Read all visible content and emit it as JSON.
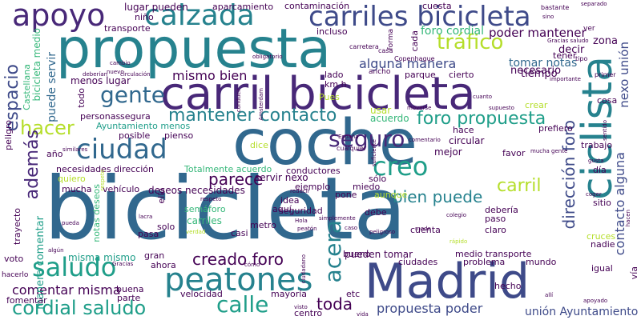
{
  "colors": {
    "background": "#ffffff",
    "palette": [
      "#440154",
      "#482878",
      "#3e4a89",
      "#31688e",
      "#26828e",
      "#1f9e89",
      "#35b779",
      "#6ece58",
      "#b5de2b",
      "#fde725"
    ]
  },
  "words": [
    {
      "text": "bicicleta",
      "color": "#31688e"
    },
    {
      "text": "coche",
      "color": "#31688e"
    },
    {
      "text": "propuesta",
      "color": "#26828e"
    },
    {
      "text": "carril bicicleta",
      "color": "#482878"
    },
    {
      "text": "Madrid",
      "color": "#3e4a89"
    },
    {
      "text": "ciclista",
      "color": "#26828e"
    },
    {
      "text": "calzada",
      "color": "#26828e"
    },
    {
      "text": "carriles bicicleta",
      "color": "#3e4a89"
    },
    {
      "text": "apoyo",
      "color": "#482878"
    },
    {
      "text": "peatones",
      "color": "#26828e"
    },
    {
      "text": "ciudad",
      "color": "#31688e"
    },
    {
      "text": "saludo",
      "color": "#1f9e89"
    },
    {
      "text": "calle",
      "color": "#1f9e89"
    },
    {
      "text": "cordial saludo",
      "color": "#1f9e89"
    },
    {
      "text": "gente",
      "color": "#31688e"
    },
    {
      "text": "mantener contacto",
      "color": "#26828e"
    },
    {
      "text": "seguro",
      "color": "#482878"
    },
    {
      "text": "creo",
      "color": "#1f9e89"
    },
    {
      "text": "tráfico",
      "color": "#b5de2b"
    },
    {
      "text": "hacer",
      "color": "#b5de2b"
    },
    {
      "text": "foro propuesta",
      "color": "#1f9e89"
    },
    {
      "text": "acera",
      "color": "#26828e"
    },
    {
      "text": "además",
      "color": "#482878"
    },
    {
      "text": "espacio",
      "color": "#3e4a89"
    },
    {
      "text": "dirección foro",
      "color": "#3e4a89"
    },
    {
      "text": "parece",
      "color": "#440154"
    },
    {
      "text": "bien puede",
      "color": "#26828e"
    },
    {
      "text": "creado foro",
      "color": "#440154"
    },
    {
      "text": "carril",
      "color": "#b5de2b"
    },
    {
      "text": "toda",
      "color": "#440154"
    },
    {
      "text": "propuesta poder",
      "color": "#3e4a89"
    },
    {
      "text": "poder mantener",
      "color": "#440154"
    },
    {
      "text": "alguna manera",
      "color": "#3e4a89"
    },
    {
      "text": "mismo bien",
      "color": "#440154"
    },
    {
      "text": "contacto alguna",
      "color": "#3e4a89"
    },
    {
      "text": "nexo unión",
      "color": "#3e4a89"
    },
    {
      "text": "unión Ayuntamiento",
      "color": "#3e4a89"
    },
    {
      "text": "comentar misma",
      "color": "#440154"
    },
    {
      "text": "foro cordial",
      "color": "#35b779"
    },
    {
      "text": "tomar notas",
      "color": "#31688e"
    },
    {
      "text": "necesario",
      "color": "#440154"
    },
    {
      "text": "tiempo",
      "color": "#440154"
    },
    {
      "text": "decir",
      "color": "#440154"
    },
    {
      "text": "zona",
      "color": "#440154"
    },
    {
      "text": "lugar pueden",
      "color": "#440154"
    },
    {
      "text": "aparcamiento",
      "color": "#440154"
    },
    {
      "text": "contaminación",
      "color": "#440154"
    },
    {
      "text": "cuesta",
      "color": "#440154"
    },
    {
      "text": "transporte",
      "color": "#440154"
    },
    {
      "text": "incluso",
      "color": "#440154"
    },
    {
      "text": "puede servir",
      "color": "#31688e"
    },
    {
      "text": "menos lugar",
      "color": "#440154"
    },
    {
      "text": "bicicleta medio",
      "color": "#35b779"
    },
    {
      "text": "Castellana",
      "color": "#35b779"
    },
    {
      "text": "lado",
      "color": "#440154"
    },
    {
      "text": "km h",
      "color": "#440154"
    },
    {
      "text": "parque",
      "color": "#440154"
    },
    {
      "text": "cierto",
      "color": "#440154"
    },
    {
      "text": "Ayuntamiento menos",
      "color": "#1f9e89"
    },
    {
      "text": "personas",
      "color": "#440154"
    },
    {
      "text": "segura",
      "color": "#440154"
    },
    {
      "text": "posible",
      "color": "#440154"
    },
    {
      "text": "pienso",
      "color": "#440154"
    },
    {
      "text": "necesidades dirección",
      "color": "#440154"
    },
    {
      "text": "Totalmente acuerdo",
      "color": "#35b779"
    },
    {
      "text": "conductores",
      "color": "#440154"
    },
    {
      "text": "servir nexo",
      "color": "#440154"
    },
    {
      "text": "deseos necesidades",
      "color": "#440154"
    },
    {
      "text": "idea",
      "color": "#440154"
    },
    {
      "text": "aquí",
      "color": "#440154"
    },
    {
      "text": "ejemplo",
      "color": "#440154"
    },
    {
      "text": "miedo",
      "color": "#440154"
    },
    {
      "text": "sólo",
      "color": "#440154"
    },
    {
      "text": "pone",
      "color": "#440154"
    },
    {
      "text": "aunque",
      "color": "#b5de2b"
    },
    {
      "text": "semáforo",
      "color": "#35b779"
    },
    {
      "text": "seguridad",
      "color": "#440154"
    },
    {
      "text": "debe",
      "color": "#440154"
    },
    {
      "text": "carriles",
      "color": "#35b779"
    },
    {
      "text": "metro",
      "color": "#440154"
    },
    {
      "text": "cuenta",
      "color": "#440154"
    },
    {
      "text": "claro",
      "color": "#440154"
    },
    {
      "text": "debería",
      "color": "#440154"
    },
    {
      "text": "paso",
      "color": "#440154"
    },
    {
      "text": "misma mismo",
      "color": "#1f9e89"
    },
    {
      "text": "pueden tomar",
      "color": "#440154"
    },
    {
      "text": "medio transporte",
      "color": "#440154"
    },
    {
      "text": "ciudades",
      "color": "#440154"
    },
    {
      "text": "problema",
      "color": "#440154"
    },
    {
      "text": "mundo",
      "color": "#440154"
    },
    {
      "text": "hecho",
      "color": "#440154"
    },
    {
      "text": "velocidad",
      "color": "#440154"
    },
    {
      "text": "mayoría",
      "color": "#440154"
    },
    {
      "text": "buena",
      "color": "#440154"
    },
    {
      "text": "parte",
      "color": "#440154"
    },
    {
      "text": "centro",
      "color": "#440154"
    },
    {
      "text": "manera comentar",
      "color": "#1f9e89"
    },
    {
      "text": "notas deseos",
      "color": "#35b779"
    },
    {
      "text": "quiero",
      "color": "#b5de2b"
    },
    {
      "text": "mucha",
      "color": "#440154"
    },
    {
      "text": "vehículo",
      "color": "#440154"
    },
    {
      "text": "pasa",
      "color": "#440154"
    },
    {
      "text": "casi",
      "color": "#440154"
    },
    {
      "text": "gran",
      "color": "#440154"
    },
    {
      "text": "ahora",
      "color": "#440154"
    },
    {
      "text": "solo",
      "color": "#440154"
    },
    {
      "text": "voto",
      "color": "#440154"
    },
    {
      "text": "fomentar",
      "color": "#440154"
    },
    {
      "text": "hacerlo",
      "color": "#440154"
    },
    {
      "text": "usar",
      "color": "#b5de2b"
    },
    {
      "text": "acuerdo",
      "color": "#35b779"
    },
    {
      "text": "hace",
      "color": "#440154"
    },
    {
      "text": "circular",
      "color": "#440154"
    },
    {
      "text": "mejor",
      "color": "#440154"
    },
    {
      "text": "favor",
      "color": "#440154"
    },
    {
      "text": "prefiero",
      "color": "#440154"
    },
    {
      "text": "trabajo",
      "color": "#440154"
    },
    {
      "text": "día",
      "color": "#440154"
    },
    {
      "text": "sitio",
      "color": "#440154"
    },
    {
      "text": "cruces",
      "color": "#b5de2b"
    },
    {
      "text": "nadie",
      "color": "#440154"
    },
    {
      "text": "igual",
      "color": "#440154"
    },
    {
      "text": "vía",
      "color": "#440154"
    },
    {
      "text": "crear",
      "color": "#b5de2b"
    },
    {
      "text": "tener",
      "color": "#440154"
    },
    {
      "text": "cosa",
      "color": "#440154"
    },
    {
      "text": "bueno",
      "color": "#440154"
    },
    {
      "text": "etc",
      "color": "#440154"
    },
    {
      "text": "año",
      "color": "#440154"
    },
    {
      "text": "peligro",
      "color": "#440154"
    },
    {
      "text": "trayecto",
      "color": "#440154"
    },
    {
      "text": "ello",
      "color": "#440154"
    },
    {
      "text": "dice",
      "color": "#b5de2b"
    },
    {
      "text": "Pues",
      "color": "#b5de2b"
    },
    {
      "text": "todo",
      "color": "#440154"
    },
    {
      "text": "niño",
      "color": "#440154"
    },
    {
      "text": "cada",
      "color": "#440154"
    },
    {
      "text": "forma",
      "color": "#440154"
    },
    {
      "text": "ancho",
      "color": "#440154"
    },
    {
      "text": "Copenhague",
      "color": "#440154"
    },
    {
      "text": "carretera",
      "color": "#440154"
    },
    {
      "text": "casa",
      "color": "#440154"
    },
    {
      "text": "importante",
      "color": "#440154"
    },
    {
      "text": "primer",
      "color": "#440154"
    },
    {
      "text": "tipo",
      "color": "#440154"
    },
    {
      "text": "bastante",
      "color": "#440154"
    },
    {
      "text": "separado",
      "color": "#440154"
    },
    {
      "text": "sino",
      "color": "#440154"
    },
    {
      "text": "Gracias saludo",
      "color": "#440154"
    },
    {
      "text": "ver",
      "color": "#440154"
    },
    {
      "text": "obligatorio",
      "color": "#440154"
    },
    {
      "text": "cambio",
      "color": "#440154"
    },
    {
      "text": "deberían",
      "color": "#440154"
    },
    {
      "text": "circulación",
      "color": "#440154"
    },
    {
      "text": "nuevo",
      "color": "#440154"
    },
    {
      "text": "Amsterdam",
      "color": "#440154"
    },
    {
      "text": "moverse",
      "color": "#440154"
    },
    {
      "text": "supuesto",
      "color": "#440154"
    },
    {
      "text": "cualquier",
      "color": "#440154"
    },
    {
      "text": "España",
      "color": "#440154"
    },
    {
      "text": "comentario",
      "color": "#440154"
    },
    {
      "text": "mucha gente",
      "color": "#440154"
    },
    {
      "text": "gusta",
      "color": "#440154"
    },
    {
      "text": "coger",
      "color": "#440154"
    },
    {
      "text": "similares",
      "color": "#440154"
    },
    {
      "text": "reducir",
      "color": "#440154"
    },
    {
      "text": "colegio",
      "color": "#440154"
    },
    {
      "text": "rápido",
      "color": "#b5de2b"
    },
    {
      "text": "lacra",
      "color": "#440154"
    },
    {
      "text": "Hola",
      "color": "#440154"
    },
    {
      "text": "peatón",
      "color": "#440154"
    },
    {
      "text": "caso",
      "color": "#440154"
    },
    {
      "text": "peligroso",
      "color": "#440154"
    },
    {
      "text": "simplemente",
      "color": "#440154"
    },
    {
      "text": "modo",
      "color": "#440154"
    },
    {
      "text": "algún",
      "color": "#440154"
    },
    {
      "text": "pueda",
      "color": "#440154"
    },
    {
      "text": "verdad",
      "color": "#b5de2b"
    },
    {
      "text": "cómo",
      "color": "#440154"
    },
    {
      "text": "ciudadano",
      "color": "#440154"
    },
    {
      "text": "visto",
      "color": "#440154"
    },
    {
      "text": "vida",
      "color": "#440154"
    },
    {
      "text": "allí",
      "color": "#440154"
    },
    {
      "text": "apoyado",
      "color": "#440154"
    },
    {
      "text": "hacen",
      "color": "#440154"
    },
    {
      "text": "cuanto",
      "color": "#440154"
    },
    {
      "text": "conducir",
      "color": "#440154"
    },
    {
      "text": "respeto",
      "color": "#b5de2b"
    },
    {
      "text": "suficiente",
      "color": "#440154"
    },
    {
      "text": "respeto",
      "color": "#440154"
    },
    {
      "text": "sentido",
      "color": "#440154"
    },
    {
      "text": "Gracias",
      "color": "#440154"
    }
  ]
}
